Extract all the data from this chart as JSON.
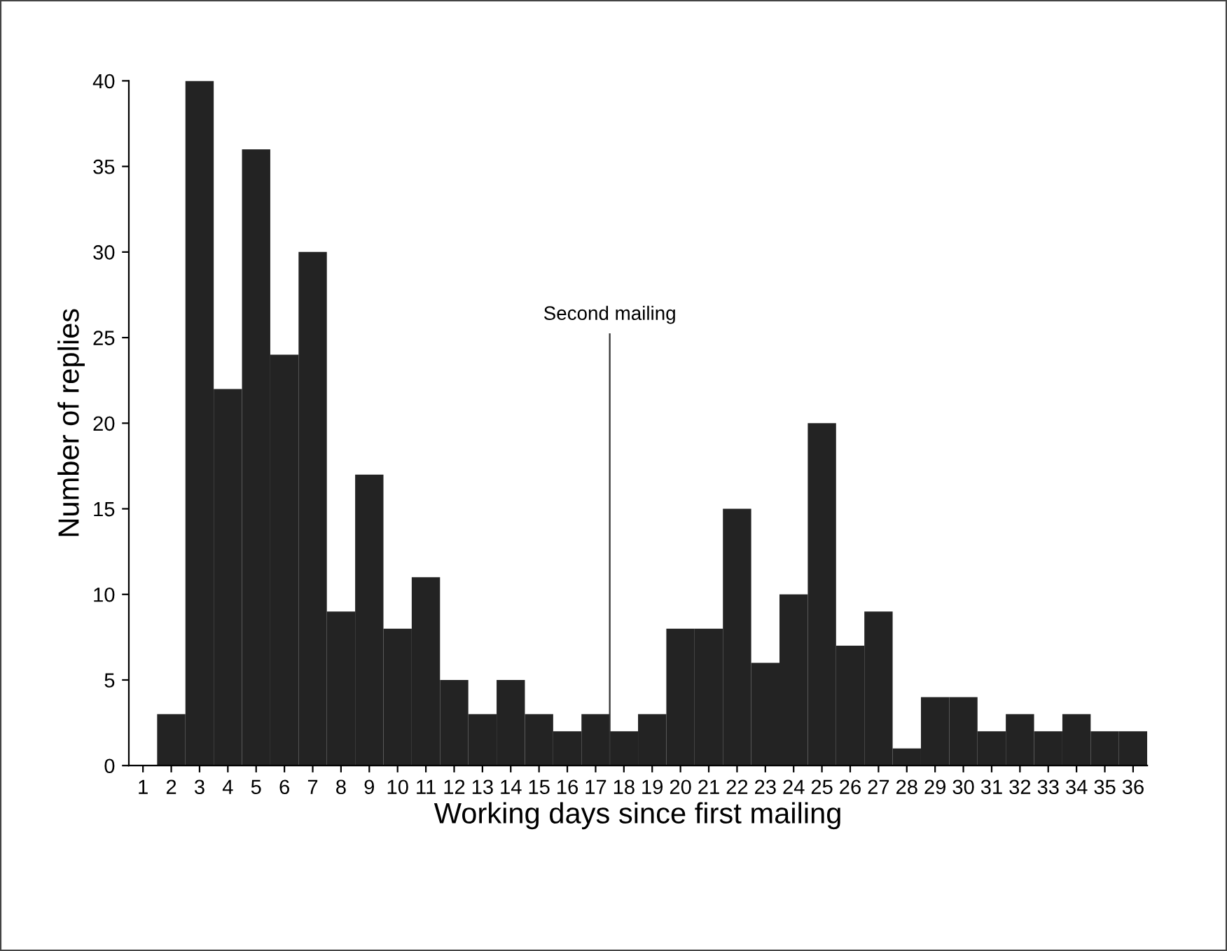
{
  "chart_data": {
    "type": "bar",
    "xlabel": "Working days since first mailing",
    "ylabel": "Number of replies",
    "x": [
      1,
      2,
      3,
      4,
      5,
      6,
      7,
      8,
      9,
      10,
      11,
      12,
      13,
      14,
      15,
      16,
      17,
      18,
      19,
      20,
      21,
      22,
      23,
      24,
      25,
      26,
      27,
      28,
      29,
      30,
      31,
      32,
      33,
      34,
      35,
      36
    ],
    "values": [
      0,
      3,
      40,
      22,
      36,
      24,
      30,
      9,
      17,
      8,
      11,
      5,
      3,
      5,
      3,
      2,
      3,
      2,
      3,
      8,
      8,
      15,
      6,
      10,
      20,
      7,
      9,
      1,
      4,
      4,
      2,
      3,
      2,
      3,
      2,
      2
    ],
    "color": "#232323",
    "xlim": [
      0.5,
      36.5
    ],
    "xticks": [
      1,
      2,
      3,
      4,
      5,
      6,
      7,
      8,
      9,
      10,
      11,
      12,
      13,
      14,
      15,
      16,
      17,
      18,
      19,
      20,
      21,
      22,
      23,
      24,
      25,
      26,
      27,
      28,
      29,
      30,
      31,
      32,
      33,
      34,
      35,
      36
    ],
    "ylim": [
      0,
      40
    ],
    "yticks": [
      0,
      5,
      10,
      15,
      20,
      25,
      30,
      35,
      40
    ],
    "ref_lines": [
      {
        "axis": "x",
        "value": 17.5,
        "label": "Second mailing",
        "color": "#333333"
      }
    ],
    "grid": false
  }
}
